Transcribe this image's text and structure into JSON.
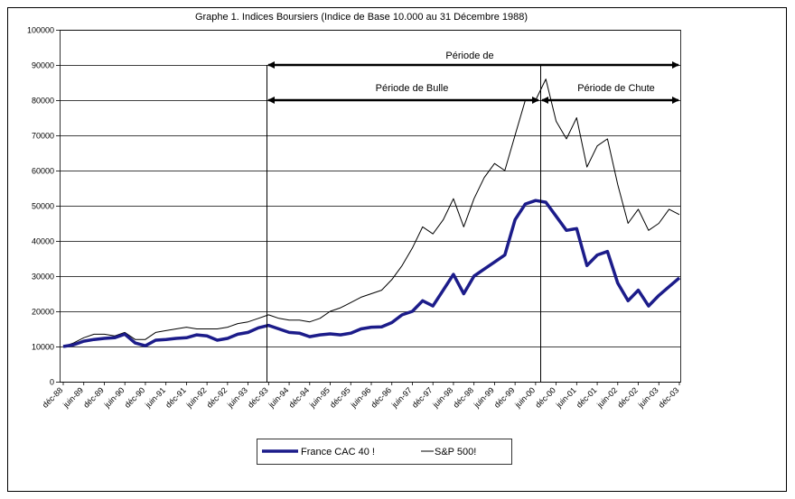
{
  "chart_data": {
    "type": "line",
    "title": "Graphe 1. Indices Boursiers (Indice de Base 10.000 au 31 Décembre 1988)",
    "annotations": [
      "Période de",
      "Période de Bulle",
      "Période de Chute"
    ],
    "categories": [
      "déc-88",
      null,
      "juin-89",
      null,
      "déc-89",
      null,
      "juin-90",
      null,
      "déc-90",
      null,
      "juin-91",
      null,
      "déc-91",
      null,
      "juin-92",
      null,
      "déc-92",
      null,
      "juin-93",
      null,
      "déc-93",
      null,
      "juin-94",
      null,
      "déc-94",
      null,
      "juin-95",
      null,
      "déc-95",
      null,
      "juin-96",
      null,
      "déc-96",
      null,
      "juin-97",
      null,
      "déc-97",
      null,
      "juin-98",
      null,
      "déc-98",
      null,
      "juin-99",
      null,
      "déc-99",
      null,
      "juin-00",
      null,
      "déc-00",
      null,
      "juin-01",
      null,
      "déc-01",
      null,
      "juin-02",
      null,
      "déc-02",
      null,
      "juin-03",
      null,
      "déc-03"
    ],
    "series": [
      {
        "name": "France CAC 40 !",
        "color": "#1c1c8a",
        "values": [
          10000,
          10500,
          11500,
          12000,
          12300,
          12500,
          13500,
          11000,
          10200,
          11800,
          12000,
          12300,
          12500,
          13300,
          13000,
          11800,
          12300,
          13500,
          14000,
          15300,
          16000,
          15000,
          14000,
          13800,
          12800,
          13300,
          13600,
          13300,
          13800,
          15000,
          15500,
          15600,
          16800,
          19000,
          20000,
          23000,
          21500,
          26000,
          30500,
          25000,
          30000,
          32000,
          34000,
          36000,
          46000,
          50500,
          51500,
          51000,
          47000,
          43000,
          43500,
          33000,
          36000,
          37000,
          28000,
          23000,
          26000,
          21500,
          24500,
          27000,
          29500
        ]
      },
      {
        "name": "S&P 500!",
        "color": "#000000",
        "values": [
          10000,
          11000,
          12500,
          13500,
          13500,
          13000,
          14000,
          12000,
          12000,
          14000,
          14500,
          15000,
          15500,
          15000,
          15000,
          15000,
          15500,
          16500,
          17000,
          18000,
          19000,
          18000,
          17500,
          17500,
          17000,
          18000,
          20000,
          21000,
          22500,
          24000,
          25000,
          26000,
          29000,
          33000,
          38000,
          44000,
          42000,
          46000,
          52000,
          44000,
          52000,
          58000,
          62000,
          60000,
          70000,
          80000,
          80000,
          86000,
          74000,
          69000,
          75000,
          61000,
          67000,
          69000,
          56000,
          45000,
          49000,
          43000,
          45000,
          49000,
          47500
        ]
      }
    ],
    "ylim": [
      0,
      100000
    ],
    "yticks": [
      0,
      10000,
      20000,
      30000,
      40000,
      50000,
      60000,
      70000,
      80000,
      90000,
      100000
    ],
    "grid": true
  }
}
